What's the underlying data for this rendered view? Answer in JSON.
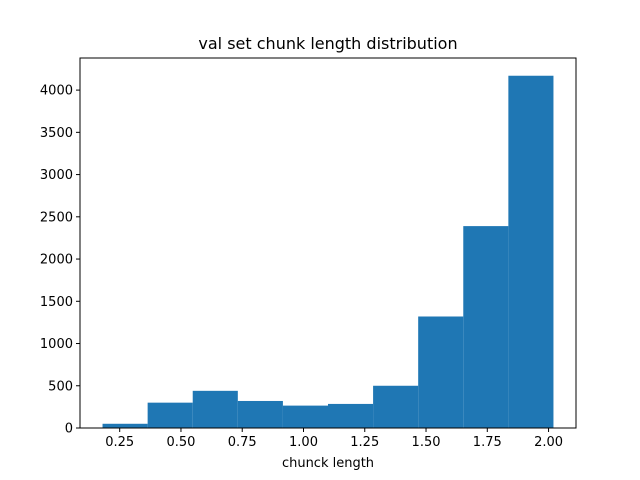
{
  "chart_data": {
    "type": "bar",
    "title": "val set chunk length distribution",
    "xlabel": "chunck length",
    "ylabel": "",
    "bin_edges": [
      0.18,
      0.364,
      0.548,
      0.732,
      0.916,
      1.1,
      1.284,
      1.468,
      1.652,
      1.836,
      2.02
    ],
    "values": [
      50,
      300,
      440,
      320,
      265,
      285,
      500,
      1320,
      2390,
      4170
    ],
    "xlim": [
      0.088,
      2.112
    ],
    "ylim": [
      0,
      4380
    ],
    "xticks": [
      0.25,
      0.5,
      0.75,
      1.0,
      1.25,
      1.5,
      1.75,
      2.0
    ],
    "xtick_labels": [
      "0.25",
      "0.50",
      "0.75",
      "1.00",
      "1.25",
      "1.50",
      "1.75",
      "2.00"
    ],
    "yticks": [
      0,
      500,
      1000,
      1500,
      2000,
      2500,
      3000,
      3500,
      4000
    ],
    "ytick_labels": [
      "0",
      "500",
      "1000",
      "1500",
      "2000",
      "2500",
      "3000",
      "3500",
      "4000"
    ],
    "bar_color": "#1f77b4",
    "grid": false,
    "legend": false
  }
}
